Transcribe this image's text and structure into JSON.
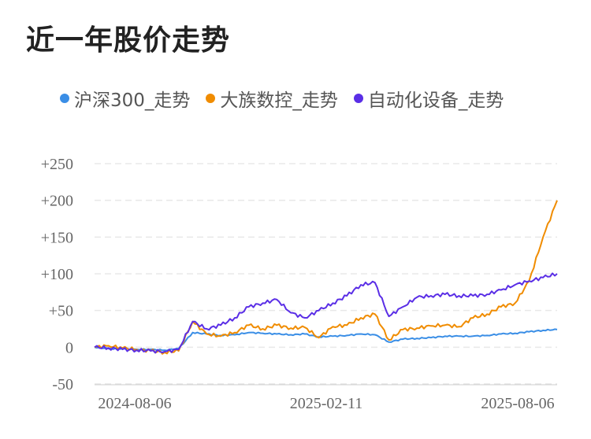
{
  "title": "近一年股价走势",
  "colors": {
    "hs300": "#3a8ee6",
    "dazu": "#f08c00",
    "auto": "#5a2ee6",
    "grid": "#e8e8e8",
    "axis": "#cccccc"
  },
  "legend": [
    {
      "label": "沪深300_走势",
      "color": "#3a8ee6"
    },
    {
      "label": "大族数控_走势",
      "color": "#f08c00"
    },
    {
      "label": "自动化设备_走势",
      "color": "#5a2ee6"
    }
  ],
  "chart_data": {
    "type": "line",
    "ylim": [
      -50,
      250
    ],
    "yticks": [
      250,
      200,
      150,
      100,
      50,
      0,
      -50
    ],
    "ytick_labels": [
      "+250",
      "+200",
      "+150",
      "+100",
      "+50",
      "0",
      "-50"
    ],
    "xtick_labels": [
      "2024-08-06",
      "2025-02-11",
      "2025-08-06"
    ],
    "grid": true,
    "legend_position": "top",
    "x": [
      "2024-07",
      "2024-08-06",
      "2024-08-20",
      "2024-08-25",
      "2024-09-01",
      "2024-09-08",
      "2024-09-15",
      "2024-09-25",
      "2024-10-01",
      "2024-10-08",
      "2024-10-20",
      "2024-11-01",
      "2024-11-15",
      "2024-12-01",
      "2024-12-15",
      "2025-01-01",
      "2025-01-15",
      "2025-02-11",
      "2025-03-01",
      "2025-03-15",
      "2025-04-01",
      "2025-04-08",
      "2025-04-20",
      "2025-05-01",
      "2025-05-15",
      "2025-06-01",
      "2025-06-15",
      "2025-07-01",
      "2025-07-15",
      "2025-08-01",
      "2025-08-06",
      "2025-08-15",
      "2025-08-25",
      "2025-09-01"
    ],
    "series": [
      {
        "name": "沪深300_走势",
        "values": [
          0,
          -2,
          -2,
          -3,
          -3,
          -4,
          -2,
          20,
          18,
          16,
          17,
          20,
          19,
          18,
          17,
          18,
          14,
          15,
          16,
          18,
          17,
          7,
          11,
          12,
          13,
          15,
          15,
          15,
          16,
          18,
          19,
          21,
          23,
          24
        ]
      },
      {
        "name": "大族数控_走势",
        "values": [
          0,
          2,
          -1,
          -3,
          -5,
          -7,
          -5,
          35,
          18,
          15,
          20,
          30,
          25,
          30,
          26,
          27,
          13,
          28,
          30,
          40,
          45,
          10,
          24,
          26,
          29,
          30,
          28,
          40,
          45,
          55,
          60,
          90,
          150,
          200
        ]
      },
      {
        "name": "自动化设备_走势",
        "values": [
          0,
          -1,
          -3,
          -4,
          -5,
          -6,
          -3,
          35,
          25,
          30,
          40,
          55,
          60,
          65,
          47,
          40,
          50,
          60,
          70,
          85,
          88,
          42,
          55,
          68,
          70,
          72,
          70,
          70,
          72,
          78,
          85,
          90,
          95,
          100
        ]
      }
    ]
  }
}
